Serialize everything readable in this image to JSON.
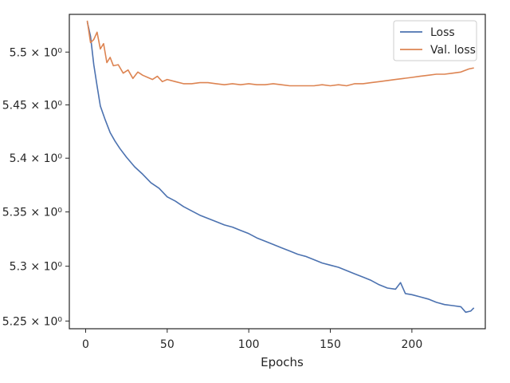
{
  "chart_data": {
    "type": "line",
    "title": "",
    "xlabel": "Epochs",
    "ylabel": "",
    "xlim": [
      -10,
      245
    ],
    "ylim": [
      5.243,
      5.536
    ],
    "yscale": "log",
    "grid": false,
    "legend_position": "top-right",
    "x_ticks": [
      0,
      50,
      100,
      150,
      200
    ],
    "x_tick_labels": [
      "0",
      "50",
      "100",
      "150",
      "200"
    ],
    "y_ticks": [
      5.25,
      5.3,
      5.35,
      5.4,
      5.45,
      5.5
    ],
    "y_tick_labels": [
      "5.25 × 10⁰",
      "5.3 × 10⁰",
      "5.35 × 10⁰",
      "5.4 × 10⁰",
      "5.45 × 10⁰",
      "5.5 × 10⁰"
    ],
    "series": [
      {
        "name": "Loss",
        "color": "#4c72b0",
        "points": [
          [
            1,
            5.529
          ],
          [
            3,
            5.515
          ],
          [
            5,
            5.488
          ],
          [
            7,
            5.468
          ],
          [
            9,
            5.449
          ],
          [
            12,
            5.436
          ],
          [
            15,
            5.424
          ],
          [
            18,
            5.416
          ],
          [
            21,
            5.409
          ],
          [
            25,
            5.401
          ],
          [
            30,
            5.392
          ],
          [
            35,
            5.385
          ],
          [
            40,
            5.377
          ],
          [
            45,
            5.372
          ],
          [
            50,
            5.364
          ],
          [
            55,
            5.36
          ],
          [
            60,
            5.355
          ],
          [
            65,
            5.351
          ],
          [
            70,
            5.347
          ],
          [
            75,
            5.344
          ],
          [
            80,
            5.341
          ],
          [
            85,
            5.338
          ],
          [
            90,
            5.336
          ],
          [
            95,
            5.333
          ],
          [
            100,
            5.33
          ],
          [
            105,
            5.326
          ],
          [
            110,
            5.323
          ],
          [
            115,
            5.32
          ],
          [
            120,
            5.317
          ],
          [
            125,
            5.314
          ],
          [
            130,
            5.311
          ],
          [
            135,
            5.309
          ],
          [
            140,
            5.306
          ],
          [
            145,
            5.303
          ],
          [
            150,
            5.301
          ],
          [
            155,
            5.299
          ],
          [
            160,
            5.296
          ],
          [
            165,
            5.293
          ],
          [
            170,
            5.29
          ],
          [
            175,
            5.287
          ],
          [
            180,
            5.283
          ],
          [
            185,
            5.28
          ],
          [
            190,
            5.279
          ],
          [
            193,
            5.285
          ],
          [
            196,
            5.275
          ],
          [
            200,
            5.274
          ],
          [
            205,
            5.272
          ],
          [
            210,
            5.27
          ],
          [
            215,
            5.267
          ],
          [
            220,
            5.265
          ],
          [
            225,
            5.264
          ],
          [
            230,
            5.263
          ],
          [
            233,
            5.258
          ],
          [
            236,
            5.259
          ],
          [
            238,
            5.262
          ]
        ]
      },
      {
        "name": "Val. loss",
        "color": "#dd8452",
        "points": [
          [
            1,
            5.53
          ],
          [
            3,
            5.509
          ],
          [
            5,
            5.512
          ],
          [
            7,
            5.519
          ],
          [
            9,
            5.503
          ],
          [
            11,
            5.508
          ],
          [
            13,
            5.49
          ],
          [
            15,
            5.495
          ],
          [
            17,
            5.487
          ],
          [
            20,
            5.488
          ],
          [
            23,
            5.48
          ],
          [
            26,
            5.483
          ],
          [
            29,
            5.475
          ],
          [
            32,
            5.481
          ],
          [
            35,
            5.478
          ],
          [
            38,
            5.476
          ],
          [
            41,
            5.474
          ],
          [
            44,
            5.477
          ],
          [
            47,
            5.472
          ],
          [
            50,
            5.474
          ],
          [
            55,
            5.472
          ],
          [
            60,
            5.47
          ],
          [
            65,
            5.47
          ],
          [
            70,
            5.471
          ],
          [
            75,
            5.471
          ],
          [
            80,
            5.47
          ],
          [
            85,
            5.469
          ],
          [
            90,
            5.47
          ],
          [
            95,
            5.469
          ],
          [
            100,
            5.47
          ],
          [
            105,
            5.469
          ],
          [
            110,
            5.469
          ],
          [
            115,
            5.47
          ],
          [
            120,
            5.469
          ],
          [
            125,
            5.468
          ],
          [
            130,
            5.468
          ],
          [
            135,
            5.468
          ],
          [
            140,
            5.468
          ],
          [
            145,
            5.469
          ],
          [
            150,
            5.468
          ],
          [
            155,
            5.469
          ],
          [
            160,
            5.468
          ],
          [
            165,
            5.47
          ],
          [
            170,
            5.47
          ],
          [
            175,
            5.471
          ],
          [
            180,
            5.472
          ],
          [
            185,
            5.473
          ],
          [
            190,
            5.474
          ],
          [
            195,
            5.475
          ],
          [
            200,
            5.476
          ],
          [
            205,
            5.477
          ],
          [
            210,
            5.478
          ],
          [
            215,
            5.479
          ],
          [
            220,
            5.479
          ],
          [
            225,
            5.48
          ],
          [
            230,
            5.481
          ],
          [
            235,
            5.484
          ],
          [
            238,
            5.485
          ]
        ]
      }
    ]
  }
}
